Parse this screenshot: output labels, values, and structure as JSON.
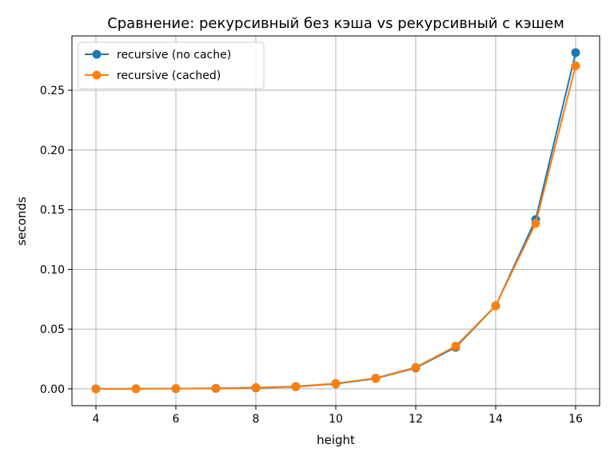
{
  "chart_data": {
    "type": "line",
    "title": "Сравнение: рекурсивный без кэша vs рекурсивный с кэшем",
    "xlabel": "height",
    "ylabel": "seconds",
    "x": [
      4,
      5,
      6,
      7,
      8,
      9,
      10,
      11,
      12,
      13,
      14,
      15,
      16
    ],
    "xlim": [
      3.4,
      16.6
    ],
    "ylim": [
      -0.0141,
      0.2955
    ],
    "xticks": [
      4,
      6,
      8,
      10,
      12,
      14,
      16
    ],
    "yticks": [
      0.0,
      0.05,
      0.1,
      0.15,
      0.2,
      0.25
    ],
    "ytick_labels": [
      "0.00",
      "0.05",
      "0.10",
      "0.15",
      "0.20",
      "0.25"
    ],
    "grid": true,
    "legend_position": "upper-left",
    "series": [
      {
        "name": "recursive (no cache)",
        "color": "#1f77b4",
        "marker": "circle",
        "values": [
          0.0,
          0.0001,
          0.0002,
          0.0004,
          0.0008,
          0.0018,
          0.0042,
          0.0087,
          0.0175,
          0.0348,
          0.0695,
          0.1418,
          0.2815
        ]
      },
      {
        "name": "recursive (cached)",
        "color": "#ff7f0e",
        "marker": "circle",
        "values": [
          0.0,
          0.0001,
          0.0003,
          0.0005,
          0.0011,
          0.002,
          0.0045,
          0.009,
          0.018,
          0.0358,
          0.0697,
          0.1385,
          0.2705
        ]
      }
    ]
  }
}
